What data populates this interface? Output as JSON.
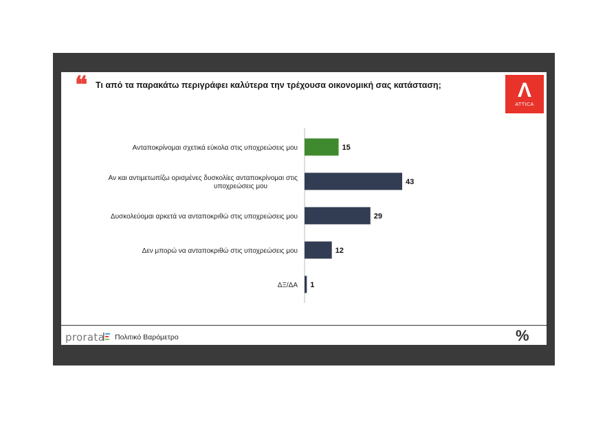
{
  "question": "Τι από τα παρακάτω περιγράφει καλύτερα την τρέχουσα οικονομική σας κατάσταση;",
  "quote_icon": "quote-icon",
  "logo": {
    "text": "ATTICA",
    "color": "#e8332b"
  },
  "footer": {
    "brand": "prorata",
    "subtitle": "Πολιτικό Βαρόμετρο",
    "percent_icon": "percent-icon"
  },
  "colors": {
    "highlight": "#3f8a2e",
    "bar": "#323c52",
    "frame": "#3a3a3a",
    "accent": "#e8443a"
  },
  "chart_data": {
    "type": "bar",
    "orientation": "horizontal",
    "categories": [
      [
        "Ανταποκρίνομαι σχετικά εύκολα στις υποχρεώσεις μου"
      ],
      [
        "Αν και αντιμετωπίζω ορισμένες δυσκολίες ανταποκρίνομαι στις",
        "υποχρεώσεις μου"
      ],
      [
        "Δυσκολεύομαι αρκετά να ανταποκριθώ στις υποχρεώσεις μου"
      ],
      [
        "Δεν μπορώ να ανταποκριθώ στις υποχρεώσεις μου"
      ],
      [
        "ΔΞ/ΔΑ"
      ]
    ],
    "values": [
      15,
      43,
      29,
      12,
      1
    ],
    "highlight_index": 0,
    "xlim": [
      0,
      43
    ]
  }
}
